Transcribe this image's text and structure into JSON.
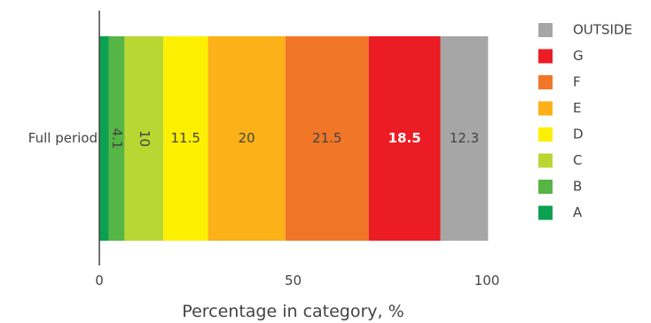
{
  "chart_data": {
    "type": "bar",
    "orientation": "horizontal",
    "stacked": true,
    "categories": [
      "Full period"
    ],
    "xlabel": "Percentage in category, %",
    "ylabel": "",
    "xlim": [
      0,
      100
    ],
    "xticks": [
      "0",
      "50",
      "100"
    ],
    "grid": false,
    "legend_position": "right",
    "series": [
      {
        "name": "A",
        "values": [
          2.4
        ],
        "color": "#0ca150",
        "label": ""
      },
      {
        "name": "B",
        "values": [
          4.1
        ],
        "color": "#55b645",
        "label": "4.1"
      },
      {
        "name": "C",
        "values": [
          10
        ],
        "color": "#bad633",
        "label": "10"
      },
      {
        "name": "D",
        "values": [
          11.5
        ],
        "color": "#fcf000",
        "label": "11.5"
      },
      {
        "name": "E",
        "values": [
          20
        ],
        "color": "#fbb117",
        "label": "20"
      },
      {
        "name": "F",
        "values": [
          21.5
        ],
        "color": "#f17628",
        "label": "21.5"
      },
      {
        "name": "G",
        "values": [
          18.5
        ],
        "color": "#ec1c24",
        "label": "18.5"
      },
      {
        "name": "OUTSIDE",
        "values": [
          12.3
        ],
        "color": "#a6a6a6",
        "label": "12.3"
      }
    ]
  }
}
